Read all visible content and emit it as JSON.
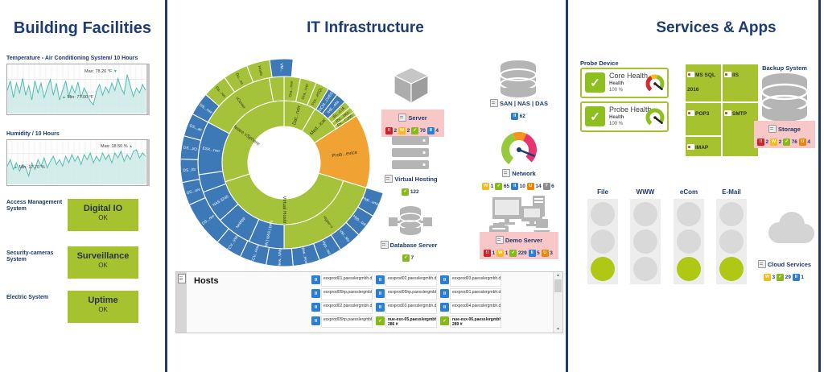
{
  "titles": {
    "left": "Building Facilities",
    "middle": "IT Infrastructure",
    "right": "Services & Apps"
  },
  "colors": {
    "accent_navy": "#1d3c72",
    "lime_green": "#a6c32f",
    "badge_up_green": "#85ba19",
    "badge_down_red": "#d61f26",
    "badge_warning_yellow": "#fcb813",
    "badge_paused_blue": "#2a7fd4",
    "badge_unusual_orange": "#f08300",
    "badge_unknown_gray": "#8c8c8c",
    "alarm_pink": "#f8c7c7",
    "chart_teal": "#54bdb2",
    "icon_gray": "#b5b5b5",
    "sunburst_green": "#a4c23a",
    "sunburst_blue": "#3d79b7",
    "sunburst_orange": "#f0a232"
  },
  "building": {
    "temperature": {
      "label": "Temperature - Air Conditioning System/ 10 Hours",
      "max_label": "Max: 78.26 °F",
      "min_label": "Min: 77.00 °F",
      "series": [
        77.6,
        78.0,
        77.3,
        77.9,
        77.5,
        78.1,
        77.4,
        77.8,
        77.2,
        78.0,
        77.5,
        77.9,
        77.3,
        77.7,
        78.05,
        77.4,
        77.9,
        77.2,
        77.6,
        78.0,
        77.35,
        77.8,
        77.5,
        77.95,
        77.3,
        77.7,
        77.45,
        77.15,
        77.0,
        77.55,
        77.85,
        77.4,
        77.75,
        77.5,
        77.9,
        77.6,
        78.1,
        77.7,
        77.45,
        78.26,
        77.8,
        77.35,
        77.7,
        77.5,
        77.85,
        77.6
      ]
    },
    "humidity": {
      "label": "Humidity / 10 Hours",
      "max_label": "Max: 18.50 %",
      "min_label": "Min: 17.70 %",
      "series": [
        18.0,
        18.2,
        17.9,
        18.1,
        17.85,
        18.05,
        17.95,
        17.7,
        18.1,
        17.9,
        18.2,
        18.0,
        18.25,
        17.95,
        18.15,
        18.3,
        18.05,
        18.2,
        18.0,
        18.3,
        18.1,
        18.35,
        18.15,
        18.3,
        18.05,
        18.35,
        18.2,
        18.4,
        18.1,
        18.3,
        18.15,
        18.4,
        18.2,
        18.35,
        18.1,
        18.4,
        18.25,
        18.45,
        18.15,
        18.35,
        18.2,
        18.45,
        18.5,
        18.25,
        18.4,
        18.3
      ]
    },
    "systems": [
      {
        "label": "Access Management System",
        "status_title": "Digital IO",
        "status": "OK"
      },
      {
        "label": "Security-cameras System",
        "status_title": "Surveillance",
        "status": "OK"
      },
      {
        "label": "Electric System",
        "status_title": "Uptime",
        "status": "OK"
      }
    ]
  },
  "infrastructure": {
    "devices": [
      {
        "name": "Server",
        "highlight": true,
        "badges": [
          {
            "type": "down",
            "count": 2
          },
          {
            "type": "warning",
            "count": 2
          },
          {
            "type": "up",
            "count": 70
          },
          {
            "type": "paused",
            "count": 4
          }
        ]
      },
      {
        "name": "Virtual Hosting",
        "highlight": false,
        "badges": [
          {
            "type": "up",
            "count": 122
          }
        ]
      },
      {
        "name": "Database Server",
        "highlight": false,
        "badges": [
          {
            "type": "up",
            "count": 7
          }
        ]
      },
      {
        "name": "SAN | NAS | DAS",
        "highlight": false,
        "badges": [
          {
            "type": "paused",
            "count": 62
          }
        ]
      },
      {
        "name": "Network",
        "highlight": false,
        "badges": [
          {
            "type": "warning",
            "count": 1
          },
          {
            "type": "up",
            "count": 65
          },
          {
            "type": "paused",
            "count": 10
          },
          {
            "type": "unusual",
            "count": 14
          },
          {
            "type": "unknown",
            "count": 6
          }
        ]
      },
      {
        "name": "Demo Server",
        "highlight": true,
        "badges": [
          {
            "type": "down",
            "count": 1
          },
          {
            "type": "warning",
            "count": 1
          },
          {
            "type": "up",
            "count": 229
          },
          {
            "type": "paused",
            "count": 5
          },
          {
            "type": "unusual",
            "count": 3
          }
        ]
      }
    ],
    "sunburst": {
      "segments": [
        {
          "ring": 1,
          "a0": 0,
          "a1": 30,
          "color": "green",
          "label": "Dat...rver"
        },
        {
          "ring": 1,
          "a0": 30,
          "a1": 57,
          "color": "green",
          "label": "Med...ical"
        },
        {
          "ring": 1,
          "a0": 57,
          "a1": 107,
          "color": "orange",
          "label": "Prob...evice",
          "span": 2
        },
        {
          "ring": 1,
          "a0": 107,
          "a1": 252,
          "color": "green",
          "label": "Virtual Hosting"
        },
        {
          "ring": 1,
          "a0": 252,
          "a1": 360,
          "color": "green",
          "label": "VMware vSphere"
        },
        {
          "ring": 2,
          "a0": 0,
          "a1": 11,
          "color": "green",
          "label": "Ora...rver"
        },
        {
          "ring": 2,
          "a0": 11,
          "a1": 22,
          "color": "green",
          "label": "Ora...rver"
        },
        {
          "ring": 2,
          "a0": 22,
          "a1": 31,
          "color": "green",
          "label": "Pos...eSQL"
        },
        {
          "ring": 2,
          "a0": 31,
          "a1": 38,
          "color": "blue",
          "label": "DCM...CHEE"
        },
        {
          "ring": 2,
          "a0": 38,
          "a1": 45,
          "color": "blue",
          "label": "IHE...ella"
        },
        {
          "ring": 2,
          "a0": 45,
          "a1": 50,
          "color": "green",
          "label": "dic...o.uk"
        },
        {
          "ring": 2,
          "a0": 50,
          "a1": 54,
          "color": "green",
          "label": "Ric...vics"
        },
        {
          "ring": 2,
          "a0": 54,
          "a1": 57,
          "color": "green",
          "label": "Ric...C305"
        },
        {
          "ring": 2,
          "a0": 107,
          "a1": 180,
          "color": "green",
          "label": "Hyper-V"
        },
        {
          "ring": 2,
          "a0": 180,
          "a1": 204,
          "color": "blue",
          "label": "SAN | NAS | DAS"
        },
        {
          "ring": 2,
          "a0": 204,
          "a1": 228,
          "color": "blue",
          "label": "NetApp"
        },
        {
          "ring": 2,
          "a0": 228,
          "a1": 250,
          "color": "blue",
          "label": "NAS 3240"
        },
        {
          "ring": 2,
          "a0": 250,
          "a1": 262,
          "color": "blue",
          "label": ""
        },
        {
          "ring": 2,
          "a0": 262,
          "a1": 298,
          "color": "blue",
          "label": "ESX...rver"
        },
        {
          "ring": 2,
          "a0": 298,
          "a1": 350,
          "color": "green",
          "label": "vCenter"
        },
        {
          "ring": 2,
          "a0": 350,
          "a1": 360,
          "color": "green",
          "label": ""
        },
        {
          "ring": 3,
          "a0": 107,
          "a1": 121,
          "color": "blue",
          "label": "Hyp...ume"
        },
        {
          "ring": 3,
          "a0": 121,
          "a1": 134,
          "color": "blue",
          "label": "Hyp...ost"
        },
        {
          "ring": 3,
          "a0": 134,
          "a1": 147,
          "color": "blue",
          "label": "VM...Ms"
        },
        {
          "ring": 3,
          "a0": 147,
          "a1": 160,
          "color": "blue",
          "label": "Hyp...ost"
        },
        {
          "ring": 3,
          "a0": 160,
          "a1": 175,
          "color": "blue",
          "label": "New...Host"
        },
        {
          "ring": 3,
          "a0": 175,
          "a1": 190,
          "color": "blue",
          "label": "New...VMs"
        },
        {
          "ring": 3,
          "a0": 190,
          "a1": 205,
          "color": "blue",
          "label": "FCV...Host"
        },
        {
          "ring": 3,
          "a0": 205,
          "a1": 220,
          "color": "blue",
          "label": "FCV...VMs"
        },
        {
          "ring": 3,
          "a0": 220,
          "a1": 246,
          "color": "blue",
          "label": "DS...ree"
        },
        {
          "ring": 3,
          "a0": 246,
          "a1": 259,
          "color": "blue",
          "label": "DS...ure"
        },
        {
          "ring": 3,
          "a0": 259,
          "a1": 272,
          "color": "blue",
          "label": "DS...lth"
        },
        {
          "ring": 3,
          "a0": 272,
          "a1": 285,
          "color": "blue",
          "label": "DS...I/O"
        },
        {
          "ring": 3,
          "a0": 285,
          "a1": 298,
          "color": "blue",
          "label": "DS...as"
        },
        {
          "ring": 3,
          "a0": 298,
          "a1": 311,
          "color": "blue",
          "label": "DS...nse"
        },
        {
          "ring": 3,
          "a0": 311,
          "a1": 325,
          "color": "green",
          "label": "Da...res"
        },
        {
          "ring": 3,
          "a0": 325,
          "a1": 339,
          "color": "green",
          "label": "Gu...es"
        },
        {
          "ring": 3,
          "a0": 339,
          "a1": 352,
          "color": "green",
          "label": "Hosts"
        },
        {
          "ring": 3,
          "a0": 352,
          "a1": 365,
          "color": "blue",
          "label": "VM..."
        }
      ]
    },
    "hosts": {
      "title": "Hosts",
      "rows": [
        [
          {
            "state": "paused",
            "text": "esxprod01.paesslergmbh.de [..."
          },
          {
            "state": "paused",
            "text": "esxprod02.paesslergmbh.de [..."
          },
          {
            "state": "paused",
            "text": "esxprod03.paesslergmbh.de [..."
          }
        ],
        [
          {
            "state": "paused",
            "text": "esxprod05hp.paesslergmbh.d..."
          },
          {
            "state": "paused",
            "text": "esxprod05hp.paesslergmbh.d..."
          },
          {
            "state": "paused",
            "text": "esxprod01.paesslergmbh.de [..."
          }
        ],
        [
          {
            "state": "paused",
            "text": "esxprod02.paesslergmbh.de [..."
          },
          {
            "state": "paused",
            "text": "esxprod03.paesslergmbh.de [..."
          },
          {
            "state": "paused",
            "text": "esxprod04.paesslergmbh.de [..."
          }
        ],
        [
          {
            "state": "paused",
            "text": "esxprod05hp.paesslergmbh.d..."
          },
          {
            "state": "up",
            "text": "nue-esx-05.paesslergmbh.de [...",
            "subtext": "286 #"
          },
          {
            "state": "up",
            "text": "nue-esx-06.paesslergmbh.de [...",
            "subtext": "289 #"
          }
        ]
      ]
    }
  },
  "services": {
    "probe_device": {
      "label": "Probe Device",
      "cards": [
        {
          "title": "Core Health",
          "subtitle": "Health",
          "value": "100 %",
          "gauge": "multi"
        },
        {
          "title": "Probe Health",
          "subtitle": "Health",
          "value": "100 %",
          "gauge": "green"
        }
      ]
    },
    "tiles": [
      {
        "label": "MS SQL 2016"
      },
      {
        "label": "IIS"
      },
      {
        "label": "POP3"
      },
      {
        "label": "SMTP"
      },
      {
        "label": "IMAP"
      }
    ],
    "backup": {
      "label": "Backup System",
      "device_label": "Storage",
      "badges": [
        {
          "type": "down",
          "count": 2
        },
        {
          "type": "warning",
          "count": 2
        },
        {
          "type": "up",
          "count": 76
        },
        {
          "type": "unusual",
          "count": 4
        }
      ]
    },
    "traffic_lights": [
      {
        "label": "File",
        "state": "green"
      },
      {
        "label": "WWW",
        "state": "off"
      },
      {
        "label": "eCom",
        "state": "green"
      },
      {
        "label": "E-Mail",
        "state": "green"
      }
    ],
    "cloud": {
      "label": "Cloud Services",
      "badges": [
        {
          "type": "warning",
          "count": 3
        },
        {
          "type": "up",
          "count": 29
        },
        {
          "type": "paused",
          "count": 1
        }
      ]
    }
  }
}
